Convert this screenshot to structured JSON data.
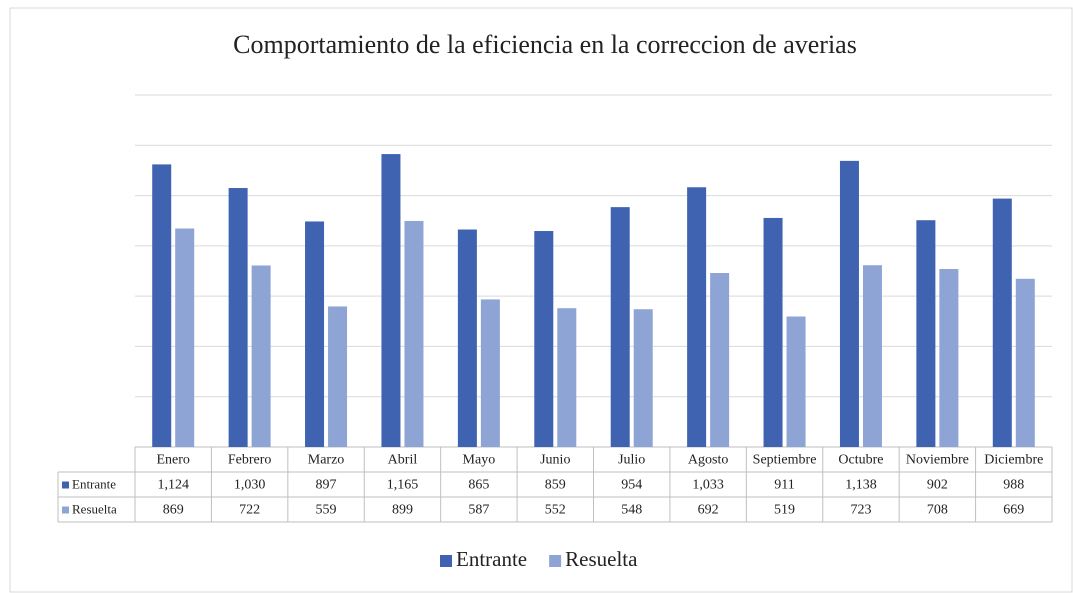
{
  "chart_data": {
    "type": "bar",
    "title": "Comportamiento de la eficiencia en la correccion de averias",
    "categories": [
      "Enero",
      "Febrero",
      "Marzo",
      "Abril",
      "Mayo",
      "Junio",
      "Julio",
      "Agosto",
      "Septiembre",
      "Octubre",
      "Noviembre",
      "Diciembre"
    ],
    "series": [
      {
        "name": "Entrante",
        "color": "#3f63b0",
        "values": [
          1124,
          1030,
          897,
          1165,
          865,
          859,
          954,
          1033,
          911,
          1138,
          902,
          988
        ],
        "value_labels": [
          "1,124",
          "1,030",
          "897",
          "1,165",
          "865",
          "859",
          "954",
          "1,033",
          "911",
          "1,138",
          "902",
          "988"
        ]
      },
      {
        "name": "Resuelta",
        "color": "#8ea4d5",
        "values": [
          869,
          722,
          559,
          899,
          587,
          552,
          548,
          692,
          519,
          723,
          708,
          669
        ],
        "value_labels": [
          "869",
          "722",
          "559",
          "899",
          "587",
          "552",
          "548",
          "692",
          "519",
          "723",
          "708",
          "669"
        ]
      }
    ],
    "ylim": [
      0,
      1400
    ],
    "yticks": [
      0,
      200,
      400,
      600,
      800,
      1000,
      1200,
      1400
    ],
    "grid": true
  }
}
